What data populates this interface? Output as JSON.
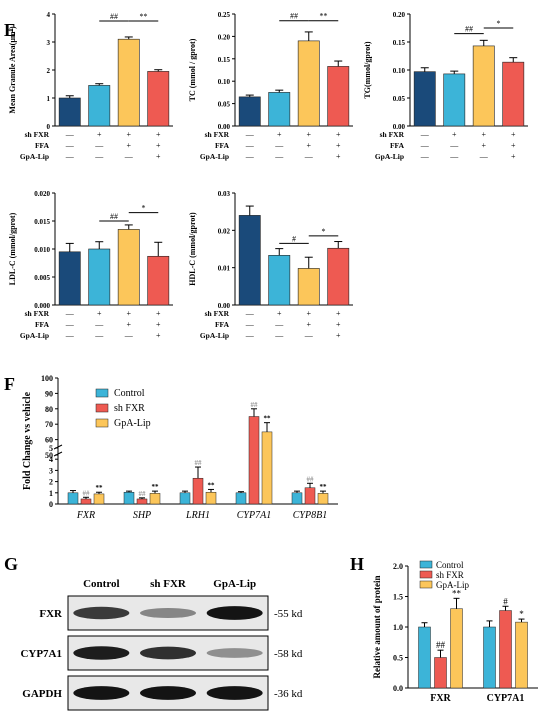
{
  "colors": {
    "control": "#1a4a7a",
    "shfxr_blue": "#3cb4d8",
    "ffa_yellow": "#fcc65a",
    "gpa_red": "#ee5a52",
    "ctrl_light": "#3cb4d8",
    "bar_stroke": "#222222"
  },
  "panels": {
    "E": "E",
    "F": "F",
    "G": "G",
    "H": "H"
  },
  "treatment_rows": {
    "labels": [
      "sh FXR",
      "FFA",
      "GpA-Lip"
    ],
    "values": [
      [
        "—",
        "+",
        "+",
        "+"
      ],
      [
        "—",
        "—",
        "+",
        "+"
      ],
      [
        "—",
        "—",
        "—",
        "+"
      ]
    ]
  },
  "chart_data": [
    {
      "id": "E1",
      "type": "bar",
      "ylabel": "Mean Granule Area(μm²)",
      "ylim": [
        0,
        4
      ],
      "yticks": [
        "0",
        "1",
        "2",
        "3",
        "4"
      ],
      "values": [
        1.0,
        1.45,
        3.1,
        1.95
      ],
      "errors": [
        0.08,
        0.06,
        0.08,
        0.06
      ],
      "annotations": [
        {
          "text": "##",
          "from": 1,
          "to": 2,
          "y": 3.75
        },
        {
          "text": "**",
          "from": 2,
          "to": 3,
          "y": 3.75
        }
      ]
    },
    {
      "id": "E2",
      "type": "bar",
      "ylabel": "TC (mmol / gprot)",
      "ylim": [
        0,
        0.25
      ],
      "yticks": [
        "0.00",
        "0.05",
        "0.10",
        "0.15",
        "0.20",
        "0.25"
      ],
      "values": [
        0.065,
        0.075,
        0.19,
        0.133
      ],
      "errors": [
        0.004,
        0.005,
        0.02,
        0.012
      ],
      "annotations": [
        {
          "text": "##",
          "from": 1,
          "to": 2,
          "y": 0.235
        },
        {
          "text": "**",
          "from": 2,
          "to": 3,
          "y": 0.235
        }
      ]
    },
    {
      "id": "E3",
      "type": "bar",
      "ylabel": "TG(mmol/gprot)",
      "ylim": [
        0,
        0.2
      ],
      "yticks": [
        "0.00",
        "0.05",
        "0.10",
        "0.15",
        "0.20"
      ],
      "values": [
        0.097,
        0.093,
        0.143,
        0.114
      ],
      "errors": [
        0.007,
        0.005,
        0.01,
        0.008
      ],
      "annotations": [
        {
          "text": "##",
          "from": 1,
          "to": 2,
          "y": 0.165
        },
        {
          "text": "*",
          "from": 2,
          "to": 3,
          "y": 0.175
        }
      ]
    },
    {
      "id": "E4",
      "type": "bar",
      "ylabel": "LDL-C (mmol/gprot)",
      "ylim": [
        0,
        0.02
      ],
      "yticks": [
        "0.000",
        "0.005",
        "0.010",
        "0.015",
        "0.020"
      ],
      "values": [
        0.0095,
        0.01,
        0.0135,
        0.0087
      ],
      "errors": [
        0.0015,
        0.0013,
        0.0008,
        0.0025
      ],
      "annotations": [
        {
          "text": "##",
          "from": 1,
          "to": 2,
          "y": 0.015
        },
        {
          "text": "*",
          "from": 2,
          "to": 3,
          "y": 0.0165
        }
      ]
    },
    {
      "id": "E5",
      "type": "bar",
      "ylabel": "HDL-C (mmol/gprot)",
      "ylim": [
        0,
        0.03
      ],
      "yticks": [
        "0.00",
        "0.01",
        "0.02",
        "0.03"
      ],
      "values": [
        0.024,
        0.0133,
        0.0098,
        0.0152
      ],
      "errors": [
        0.0025,
        0.0018,
        0.003,
        0.0018
      ],
      "annotations": [
        {
          "text": "#",
          "from": 1,
          "to": 2,
          "y": 0.0165
        },
        {
          "text": "*",
          "from": 2,
          "to": 3,
          "y": 0.0185
        }
      ]
    },
    {
      "id": "F",
      "type": "bar",
      "ylabel": "Fold Change vs vehicle",
      "yticks_lower": [
        "0",
        "1",
        "2",
        "3",
        "4",
        "5"
      ],
      "yticks_upper": [
        "50",
        "60",
        "70",
        "80",
        "90",
        "100"
      ],
      "categories": [
        "FXR",
        "SHP",
        "LRH1",
        "CYP7A1",
        "CYP8B1"
      ],
      "series": [
        {
          "name": "Control",
          "values": [
            1.0,
            1.05,
            1.0,
            1.0,
            1.0
          ],
          "errors": [
            0.2,
            0.1,
            0.15,
            0.1,
            0.15
          ]
        },
        {
          "name": "sh FXR",
          "values": [
            0.45,
            0.45,
            2.3,
            75,
            1.45
          ],
          "errors": [
            0.15,
            0.1,
            1.0,
            5,
            0.4
          ]
        },
        {
          "name": "GpA-Lip",
          "values": [
            0.9,
            0.95,
            1.05,
            65,
            0.95
          ],
          "errors": [
            0.15,
            0.2,
            0.25,
            6,
            0.2
          ]
        }
      ],
      "annotations": [
        {
          "cat": 0,
          "series": 1,
          "text": "##"
        },
        {
          "cat": 0,
          "series": 2,
          "text": "**"
        },
        {
          "cat": 1,
          "series": 1,
          "text": "##"
        },
        {
          "cat": 1,
          "series": 2,
          "text": "**"
        },
        {
          "cat": 2,
          "series": 1,
          "text": "##"
        },
        {
          "cat": 2,
          "series": 2,
          "text": "**"
        },
        {
          "cat": 3,
          "series": 1,
          "text": "##"
        },
        {
          "cat": 3,
          "series": 2,
          "text": "**"
        },
        {
          "cat": 4,
          "series": 1,
          "text": "##"
        },
        {
          "cat": 4,
          "series": 2,
          "text": "**"
        }
      ]
    },
    {
      "id": "H",
      "type": "bar",
      "ylabel": "Relative amount of protein",
      "ylim": [
        0,
        2.0
      ],
      "yticks": [
        "0.0",
        "0.5",
        "1.0",
        "1.5",
        "2.0"
      ],
      "categories": [
        "FXR",
        "CYP7A1"
      ],
      "series": [
        {
          "name": "Control",
          "values": [
            1.0,
            1.0
          ],
          "errors": [
            0.07,
            0.1
          ]
        },
        {
          "name": "sh FXR",
          "values": [
            0.5,
            1.27
          ],
          "errors": [
            0.12,
            0.07
          ]
        },
        {
          "name": "GpA-Lip",
          "values": [
            1.3,
            1.08
          ],
          "errors": [
            0.17,
            0.05
          ]
        }
      ],
      "annotations": [
        {
          "cat": 0,
          "series": 1,
          "text": "##"
        },
        {
          "cat": 0,
          "series": 2,
          "text": "**"
        },
        {
          "cat": 1,
          "series": 1,
          "text": "#"
        },
        {
          "cat": 1,
          "series": 2,
          "text": "*"
        }
      ]
    }
  ],
  "blot": {
    "columns": [
      "Control",
      "sh FXR",
      "GpA-Lip"
    ],
    "rows": [
      {
        "name": "FXR",
        "size": "-55 kd",
        "intensity": [
          0.75,
          0.35,
          0.95
        ]
      },
      {
        "name": "CYP7A1",
        "size": "-58 kd",
        "intensity": [
          0.9,
          0.8,
          0.3
        ]
      },
      {
        "name": "GAPDH",
        "size": "-36 kd",
        "intensity": [
          0.95,
          0.95,
          0.95
        ]
      }
    ]
  }
}
